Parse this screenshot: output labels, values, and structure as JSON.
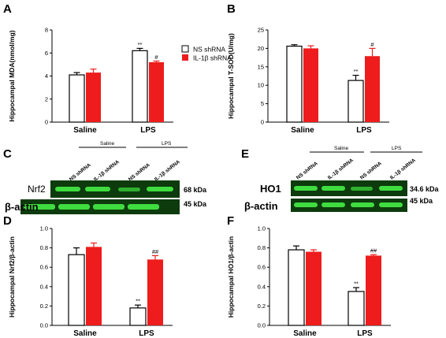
{
  "colors": {
    "control_bar": "#ffffff",
    "shrna_bar": "#ee1c1c",
    "blot_background": "#0d3b0d",
    "blot_band": "#3fdc3f"
  },
  "panels": {
    "A": {
      "letter": "A"
    },
    "B": {
      "letter": "B"
    },
    "C": {
      "letter": "C"
    },
    "D": {
      "letter": "D"
    },
    "E": {
      "letter": "E"
    },
    "F": {
      "letter": "F"
    }
  },
  "legend": {
    "entries": [
      "NS shRNA",
      "IL-1β shRNA"
    ]
  },
  "chart_data": [
    {
      "panel": "A",
      "type": "bar",
      "ylabel": "Hippocampal MDA(nmol/mg)",
      "categories": [
        "Saline",
        "LPS"
      ],
      "ylim": [
        0,
        8
      ],
      "yticks": [
        "0",
        "2",
        "4",
        "6",
        "8"
      ],
      "series": [
        {
          "name": "NS shRNA",
          "values": [
            4.1,
            6.2
          ],
          "errors": [
            0.2,
            0.2
          ]
        },
        {
          "name": "IL-1β shRNA",
          "values": [
            4.3,
            5.2
          ],
          "errors": [
            0.3,
            0.1
          ]
        }
      ],
      "annotations": [
        {
          "category": "LPS",
          "series": "NS shRNA",
          "text": "**"
        },
        {
          "category": "LPS",
          "series": "IL-1β shRNA",
          "text": "#"
        }
      ]
    },
    {
      "panel": "B",
      "type": "bar",
      "ylabel": "Hippocampal T-SOD(U/mg)",
      "categories": [
        "Saline",
        "LPS"
      ],
      "ylim": [
        0,
        25
      ],
      "yticks": [
        "0",
        "5",
        "10",
        "15",
        "20",
        "25"
      ],
      "series": [
        {
          "name": "NS shRNA",
          "values": [
            20.6,
            11.3
          ],
          "errors": [
            0.4,
            1.4
          ]
        },
        {
          "name": "IL-1β shRNA",
          "values": [
            20.0,
            17.9
          ],
          "errors": [
            0.7,
            2.1
          ]
        }
      ],
      "annotations": [
        {
          "category": "LPS",
          "series": "NS shRNA",
          "text": "**"
        },
        {
          "category": "LPS",
          "series": "IL-1β shRNA",
          "text": "#"
        }
      ]
    },
    {
      "panel": "D",
      "type": "bar",
      "ylabel": "Hippocampal Nrf2/β-actin",
      "categories": [
        "Saline",
        "LPS"
      ],
      "ylim": [
        0,
        1.0
      ],
      "yticks": [
        "0.0",
        "0.2",
        "0.4",
        "0.6",
        "0.8",
        "1.0"
      ],
      "series": [
        {
          "name": "NS shRNA",
          "values": [
            0.73,
            0.18
          ],
          "errors": [
            0.07,
            0.03
          ]
        },
        {
          "name": "IL-1β shRNA",
          "values": [
            0.81,
            0.68
          ],
          "errors": [
            0.04,
            0.04
          ]
        }
      ],
      "annotations": [
        {
          "category": "LPS",
          "series": "NS shRNA",
          "text": "**"
        },
        {
          "category": "LPS",
          "series": "IL-1β shRNA",
          "text": "##"
        }
      ]
    },
    {
      "panel": "F",
      "type": "bar",
      "ylabel": "Hippocampal HO1/β-actin",
      "categories": [
        "Saline",
        "LPS"
      ],
      "ylim": [
        0,
        1.0
      ],
      "yticks": [
        "0.0",
        "0.2",
        "0.4",
        "0.6",
        "0.8",
        "1.0"
      ],
      "series": [
        {
          "name": "NS shRNA",
          "values": [
            0.78,
            0.35
          ],
          "errors": [
            0.04,
            0.04
          ]
        },
        {
          "name": "IL-1β shRNA",
          "values": [
            0.76,
            0.72
          ],
          "errors": [
            0.02,
            0.01
          ]
        }
      ],
      "annotations": [
        {
          "category": "LPS",
          "series": "NS shRNA",
          "text": "**"
        },
        {
          "category": "LPS",
          "series": "IL-1β shRNA",
          "text": "##"
        }
      ]
    }
  ],
  "blots": {
    "C": {
      "conditions": [
        "Saline",
        "LPS"
      ],
      "lanes": [
        "NS shRNA",
        "IL-1β shRNA",
        "NS shRNA",
        "IL-1β shRNA"
      ],
      "rows": [
        {
          "protein": "Nrf2",
          "size": "68 kDa"
        },
        {
          "protein": "β-actin",
          "size": "45 kDa"
        }
      ]
    },
    "E": {
      "conditions": [
        "Saline",
        "LPS"
      ],
      "lanes": [
        "NS shRNA",
        "IL-1β shRNA",
        "NS shRNA",
        "IL-1β shRNA"
      ],
      "rows": [
        {
          "protein": "HO1",
          "size": "34.6 kDa"
        },
        {
          "protein": "β-actin",
          "size": "45 kDa"
        }
      ]
    }
  }
}
